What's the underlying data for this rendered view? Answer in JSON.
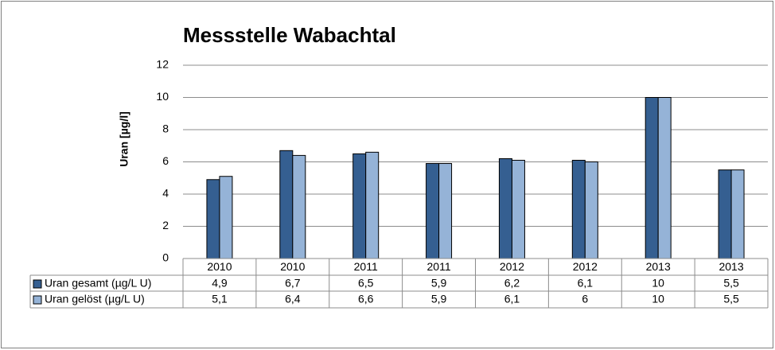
{
  "chart_data": {
    "type": "bar",
    "title": "Messstelle Wabachtal",
    "ylabel": "Uran [µg/l]",
    "categories": [
      "2010",
      "2010",
      "2011",
      "2011",
      "2012",
      "2012",
      "2013",
      "2013"
    ],
    "series": [
      {
        "name": "Uran gesamt (µg/L U)",
        "color": "#355f91",
        "values": [
          4.9,
          6.7,
          6.5,
          5.9,
          6.2,
          6.1,
          10,
          5.5
        ],
        "value_labels": [
          "4,9",
          "6,7",
          "6,5",
          "5,9",
          "6,2",
          "6,1",
          "10",
          "5,5"
        ]
      },
      {
        "name": "Uran gelöst (µg/L U)",
        "color": "#95b3d7",
        "values": [
          5.1,
          6.4,
          6.6,
          5.9,
          6.1,
          6,
          10,
          5.5
        ],
        "value_labels": [
          "5,1",
          "6,4",
          "6,6",
          "5,9",
          "6,1",
          "6",
          "10",
          "5,5"
        ]
      }
    ],
    "ylim": [
      0,
      12
    ],
    "yticks": [
      0,
      2,
      4,
      6,
      8,
      10,
      12
    ],
    "grid": true
  }
}
